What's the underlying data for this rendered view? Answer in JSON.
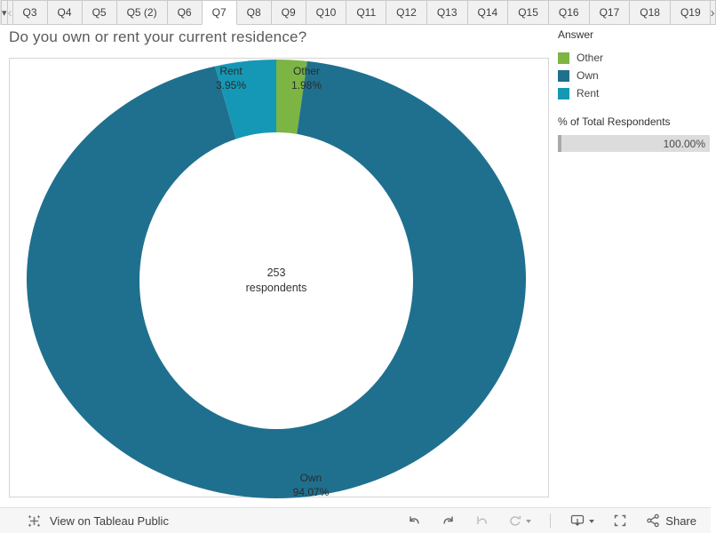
{
  "tab_bar": {
    "dropdown_icon": "▾",
    "prev_icon": "‹",
    "next_icon": "›",
    "tabs": [
      {
        "label": "Q3",
        "active": false
      },
      {
        "label": "Q4",
        "active": false
      },
      {
        "label": "Q5",
        "active": false
      },
      {
        "label": "Q5 (2)",
        "active": false
      },
      {
        "label": "Q6",
        "active": false
      },
      {
        "label": "Q7",
        "active": true
      },
      {
        "label": "Q8",
        "active": false
      },
      {
        "label": "Q9",
        "active": false
      },
      {
        "label": "Q10",
        "active": false
      },
      {
        "label": "Q11",
        "active": false
      },
      {
        "label": "Q12",
        "active": false
      },
      {
        "label": "Q13",
        "active": false
      },
      {
        "label": "Q14",
        "active": false
      },
      {
        "label": "Q15",
        "active": false
      },
      {
        "label": "Q16",
        "active": false
      },
      {
        "label": "Q17",
        "active": false
      },
      {
        "label": "Q18",
        "active": false
      },
      {
        "label": "Q19",
        "active": false
      }
    ]
  },
  "title": "Do you own or rent your current residence?",
  "chart_data": {
    "type": "pie",
    "subtype": "donut",
    "title": "Do you own or rent your current residence?",
    "categories": [
      "Other",
      "Own",
      "Rent"
    ],
    "values": [
      1.98,
      94.07,
      3.95
    ],
    "value_unit": "% of total respondents",
    "colors": [
      "#7CB544",
      "#1F708F",
      "#1598B5"
    ],
    "start_angle_deg": 0,
    "direction": "clockwise",
    "total_respondents": 253,
    "center_label": {
      "line1": "253",
      "line2": "respondents"
    },
    "slice_labels": [
      {
        "category": "Other",
        "line1": "Other",
        "line2": "1.98%"
      },
      {
        "category": "Own",
        "line1": "Own",
        "line2": "94.07%"
      },
      {
        "category": "Rent",
        "line1": "Rent",
        "line2": "3.95%"
      }
    ],
    "legend_position": "right"
  },
  "legend": {
    "title": "Answer",
    "items": [
      {
        "label": "Other",
        "color": "#7CB544"
      },
      {
        "label": "Own",
        "color": "#1F708F"
      },
      {
        "label": "Rent",
        "color": "#1598B5"
      }
    ]
  },
  "filter": {
    "label": "% of Total Respondents",
    "value": "100.00%"
  },
  "toolbar": {
    "view_on_label": "View on Tableau Public",
    "share_label": "Share"
  }
}
